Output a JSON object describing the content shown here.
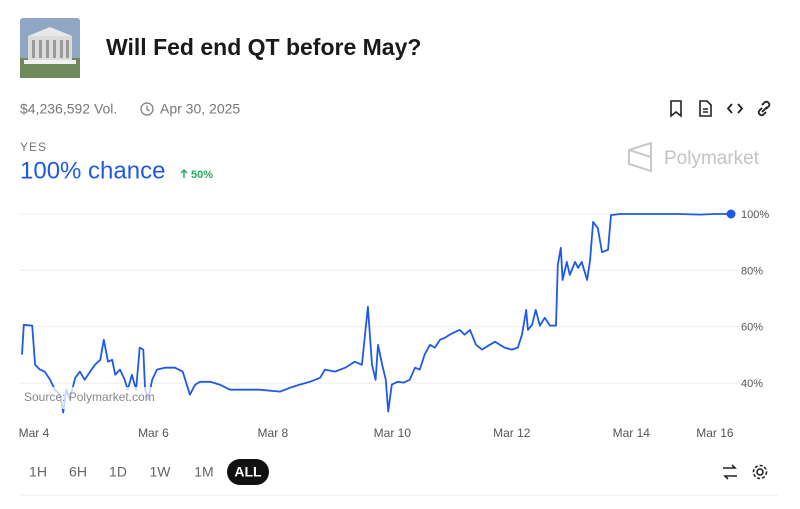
{
  "header": {
    "title": "Will Fed end QT before May?",
    "volume": "$4,236,592 Vol.",
    "end_date": "Apr 30, 2025"
  },
  "outcome": {
    "label": "YES",
    "chance": "100% chance",
    "change": "50%"
  },
  "brand": "Polymarket",
  "chart_data": {
    "type": "line",
    "source": "Source: Polymarket.com",
    "color": "#1f5ae6",
    "grid": true,
    "x": [
      0.0,
      0.03,
      0.17,
      0.22,
      0.3,
      0.38,
      0.47,
      0.55,
      0.64,
      0.69,
      0.74,
      0.8,
      0.89,
      0.97,
      1.05,
      1.14,
      1.22,
      1.31,
      1.37,
      1.44,
      1.51,
      1.56,
      1.64,
      1.72,
      1.77,
      1.84,
      1.91,
      1.97,
      2.03,
      2.06,
      2.11,
      2.18,
      2.26,
      2.39,
      2.56,
      2.69,
      2.81,
      2.9,
      2.98,
      3.15,
      3.31,
      3.48,
      3.65,
      3.98,
      4.32,
      4.49,
      4.65,
      4.82,
      4.99,
      5.07,
      5.24,
      5.41,
      5.57,
      5.69,
      5.79,
      5.86,
      5.92,
      5.96,
      6.03,
      6.09,
      6.13,
      6.19,
      6.29,
      6.39,
      6.49,
      6.58,
      6.66,
      6.74,
      6.83,
      6.91,
      7.0,
      7.08,
      7.16,
      7.25,
      7.33,
      7.41,
      7.5,
      7.6,
      7.7,
      7.83,
      7.92,
      8.0,
      8.08,
      8.2,
      8.3,
      8.37,
      8.44,
      8.47,
      8.54,
      8.6,
      8.67,
      8.75,
      8.84,
      8.94,
      8.97,
      9.02,
      9.05,
      9.12,
      9.17,
      9.26,
      9.31,
      9.37,
      9.46,
      9.51,
      9.56,
      9.64,
      9.71,
      9.81,
      9.86,
      10.01,
      10.51,
      11.01,
      11.35,
      11.6,
      11.87
    ],
    "values": [
      50.1,
      60.7,
      60.4,
      46.5,
      44.8,
      44.1,
      41.2,
      37.7,
      35.9,
      29.6,
      37.7,
      34.2,
      41.9,
      44.1,
      41.2,
      44.1,
      46.5,
      48.3,
      55.4,
      47.6,
      48.3,
      43.0,
      44.8,
      41.2,
      37.7,
      43.0,
      37.7,
      52.6,
      51.9,
      37.7,
      34.2,
      41.2,
      44.8,
      45.5,
      45.5,
      44.1,
      35.9,
      39.5,
      40.5,
      40.5,
      39.5,
      37.7,
      37.7,
      37.7,
      37.0,
      38.4,
      39.5,
      40.5,
      41.9,
      44.8,
      44.1,
      45.5,
      47.6,
      46.5,
      67.1,
      46.5,
      41.2,
      53.6,
      46.5,
      41.2,
      29.9,
      39.5,
      40.5,
      40.2,
      41.2,
      45.5,
      44.8,
      50.1,
      53.6,
      52.6,
      55.4,
      56.1,
      57.2,
      58.2,
      58.9,
      57.2,
      58.9,
      53.6,
      51.9,
      53.6,
      54.7,
      53.6,
      52.6,
      51.9,
      52.6,
      57.2,
      66.0,
      58.9,
      60.7,
      66.0,
      60.4,
      63.2,
      60.4,
      60.4,
      81.9,
      88.0,
      76.6,
      83.0,
      78.4,
      83.0,
      80.9,
      83.0,
      76.6,
      83.7,
      97.2,
      95.0,
      86.5,
      87.3,
      99.6,
      100,
      100,
      100,
      99.8,
      100,
      100
    ],
    "xlim": [
      0,
      12.02
    ],
    "xticks": [
      {
        "value": 0.2,
        "label": "Mar 4"
      },
      {
        "value": 2.2,
        "label": "Mar 6"
      },
      {
        "value": 4.2,
        "label": "Mar 8"
      },
      {
        "value": 6.2,
        "label": "Mar 10"
      },
      {
        "value": 8.2,
        "label": "Mar 12"
      },
      {
        "value": 10.2,
        "label": "Mar 14"
      },
      {
        "value": 11.6,
        "label": "Mar 16"
      }
    ],
    "ylim": [
      28,
      100
    ],
    "yticks": [
      {
        "value": 100,
        "label": "100%"
      },
      {
        "value": 80,
        "label": "80%"
      },
      {
        "value": 60,
        "label": "60%"
      },
      {
        "value": 40,
        "label": "40%"
      }
    ]
  },
  "time_ranges": [
    "1H",
    "6H",
    "1D",
    "1W",
    "1M",
    "ALL"
  ],
  "selected_range": "ALL"
}
